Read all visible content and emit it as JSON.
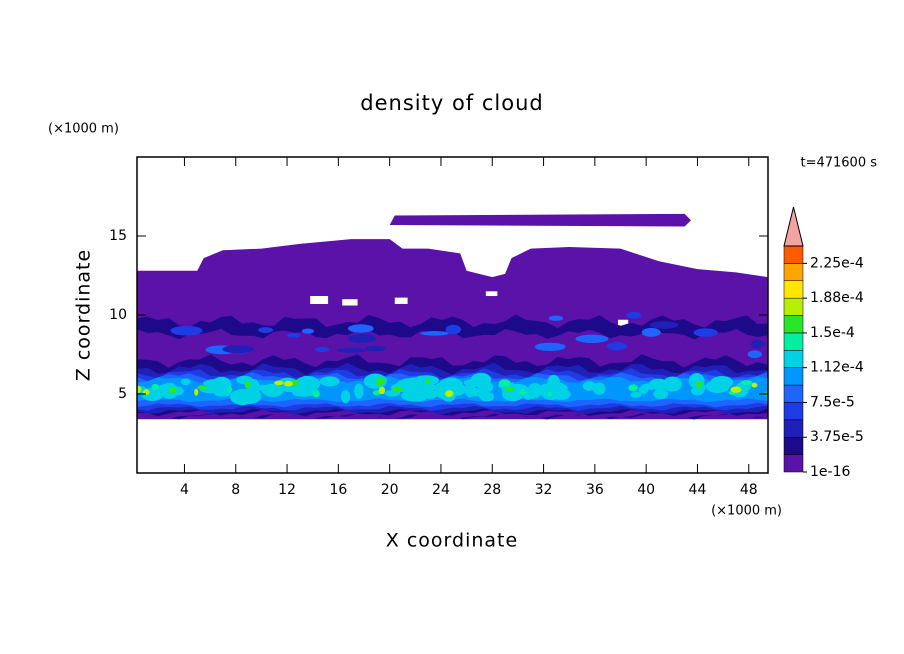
{
  "chart_data": {
    "type": "contour",
    "title": "density of cloud",
    "x_label": "X coordinate",
    "y_label": "Z coordinate",
    "x_unit": "(×1000 m)",
    "y_unit": "(×1000 m)",
    "annotation": "t=471600 s",
    "xlim": [
      0.3,
      49.5
    ],
    "ylim": [
      0,
      20
    ],
    "xticks": [
      4,
      8,
      12,
      16,
      20,
      24,
      28,
      32,
      36,
      40,
      44,
      48
    ],
    "yticks": [
      5,
      10,
      15
    ],
    "colorbar": {
      "clim": [
        1e-16,
        0.00024375
      ],
      "ticks": [
        {
          "value": 1e-16,
          "label": "1e-16"
        },
        {
          "value": 3.75e-05,
          "label": "3.75e-5"
        },
        {
          "value": 7.5e-05,
          "label": "7.5e-5"
        },
        {
          "value": 0.0001125,
          "label": "1.12e-4"
        },
        {
          "value": 0.00015,
          "label": "1.5e-4"
        },
        {
          "value": 0.0001875,
          "label": "1.88e-4"
        },
        {
          "value": 0.000225,
          "label": "2.25e-4"
        }
      ],
      "colors": [
        "#5a12a8",
        "#1c0a8a",
        "#2020b8",
        "#1e3ce6",
        "#1e64ff",
        "#0096ff",
        "#00d2e6",
        "#00f0a0",
        "#28e628",
        "#b4f000",
        "#ffe600",
        "#ffa500",
        "#ff5a00"
      ],
      "extend_color": "#f4a3a3"
    }
  }
}
